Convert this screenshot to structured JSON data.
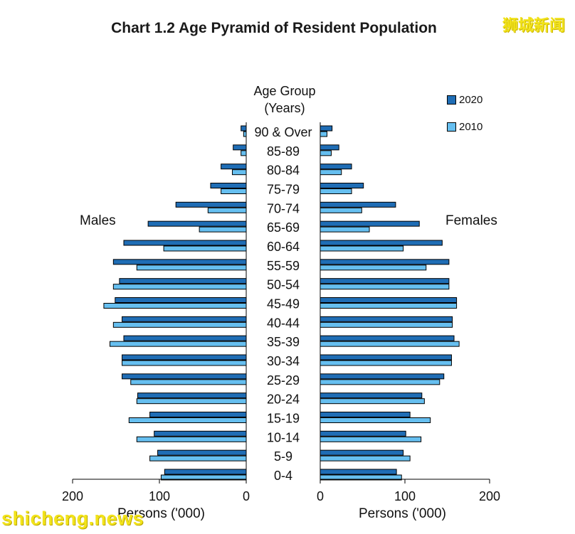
{
  "title": "Chart 1.2  Age Pyramid of Resident Population",
  "watermarks": {
    "top": "狮城新闻",
    "bottom": "shicheng.news"
  },
  "center_header": {
    "line1": "Age Group",
    "line2": "(Years)"
  },
  "side_labels": {
    "left": "Males",
    "right": "Females"
  },
  "x_axis_titles": {
    "left": "Persons ('000)",
    "right": "Persons ('000)"
  },
  "legend": [
    {
      "label": "2020",
      "color": "#1f6db5"
    },
    {
      "label": "2010",
      "color": "#66bff0"
    }
  ],
  "chart_data": {
    "type": "bar",
    "orientation": "horizontal-pyramid",
    "title": "Chart 1.2  Age Pyramid of Resident Population",
    "categories": [
      "0-4",
      "5-9",
      "10-14",
      "15-19",
      "20-24",
      "25-29",
      "30-34",
      "35-39",
      "40-44",
      "45-49",
      "50-54",
      "55-59",
      "60-64",
      "65-69",
      "70-74",
      "75-79",
      "80-84",
      "85-89",
      "90 & Over"
    ],
    "xlim": [
      0,
      200
    ],
    "xticks": [
      0,
      100,
      200
    ],
    "xlabel_left": "Persons ('000)",
    "xlabel_right": "Persons ('000)",
    "series": [
      {
        "name": "2020",
        "side": "Males",
        "color": "#1f6db5",
        "values": [
          94,
          102,
          106,
          111,
          125,
          143,
          143,
          141,
          143,
          151,
          146,
          153,
          141,
          113,
          81,
          41,
          29,
          15,
          6
        ]
      },
      {
        "name": "2010",
        "side": "Males",
        "color": "#66bff0",
        "values": [
          98,
          111,
          126,
          135,
          126,
          133,
          143,
          157,
          153,
          164,
          153,
          126,
          95,
          54,
          44,
          29,
          16,
          6,
          3
        ]
      },
      {
        "name": "2020",
        "side": "Females",
        "color": "#1f6db5",
        "values": [
          90,
          98,
          101,
          106,
          120,
          146,
          155,
          158,
          156,
          161,
          152,
          152,
          144,
          117,
          89,
          51,
          37,
          22,
          14
        ]
      },
      {
        "name": "2010",
        "side": "Females",
        "color": "#66bff0",
        "values": [
          96,
          106,
          119,
          130,
          123,
          141,
          155,
          164,
          156,
          161,
          152,
          125,
          98,
          58,
          49,
          37,
          25,
          13,
          8
        ]
      }
    ],
    "legend_position": "top-right"
  }
}
